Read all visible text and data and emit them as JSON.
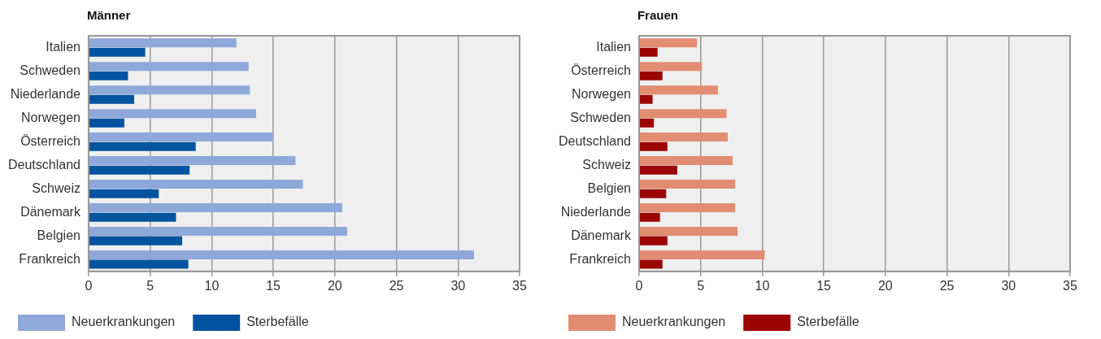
{
  "chart_data": [
    {
      "type": "bar",
      "orientation": "horizontal",
      "title": "Männer",
      "categories": [
        "Italien",
        "Schweden",
        "Niederlande",
        "Norwegen",
        "Österreich",
        "Deutschland",
        "Schweiz",
        "Dänemark",
        "Belgien",
        "Frankreich"
      ],
      "series": [
        {
          "name": "Neuerkrankungen",
          "color": "#8ea8da",
          "values": [
            12.0,
            13.0,
            13.1,
            13.6,
            15.0,
            16.8,
            17.4,
            20.6,
            21.0,
            31.3
          ]
        },
        {
          "name": "Sterbefälle",
          "color": "#00539f",
          "values": [
            4.6,
            3.2,
            3.7,
            2.9,
            8.7,
            8.2,
            5.7,
            7.1,
            7.6,
            8.1
          ]
        }
      ],
      "xlim": [
        0,
        35
      ],
      "xticks": [
        0,
        5,
        10,
        15,
        20,
        25,
        30,
        35
      ],
      "grid": "x",
      "legend": "bottom left"
    },
    {
      "type": "bar",
      "orientation": "horizontal",
      "title": "Frauen",
      "categories": [
        "Italien",
        "Österreich",
        "Norwegen",
        "Schweden",
        "Deutschland",
        "Schweiz",
        "Belgien",
        "Niederlande",
        "Dänemark",
        "Frankreich"
      ],
      "series": [
        {
          "name": "Neuerkrankungen",
          "color": "#e28c72",
          "values": [
            4.7,
            5.1,
            6.4,
            7.1,
            7.2,
            7.6,
            7.8,
            7.8,
            8.0,
            10.2
          ]
        },
        {
          "name": "Sterbefälle",
          "color": "#9b0603",
          "values": [
            1.5,
            1.9,
            1.1,
            1.2,
            2.3,
            3.1,
            2.2,
            1.7,
            2.3,
            1.9
          ]
        }
      ],
      "xlim": [
        0,
        35
      ],
      "xticks": [
        0,
        5,
        10,
        15,
        20,
        25,
        30,
        35
      ],
      "grid": "x",
      "legend": "bottom left"
    }
  ]
}
